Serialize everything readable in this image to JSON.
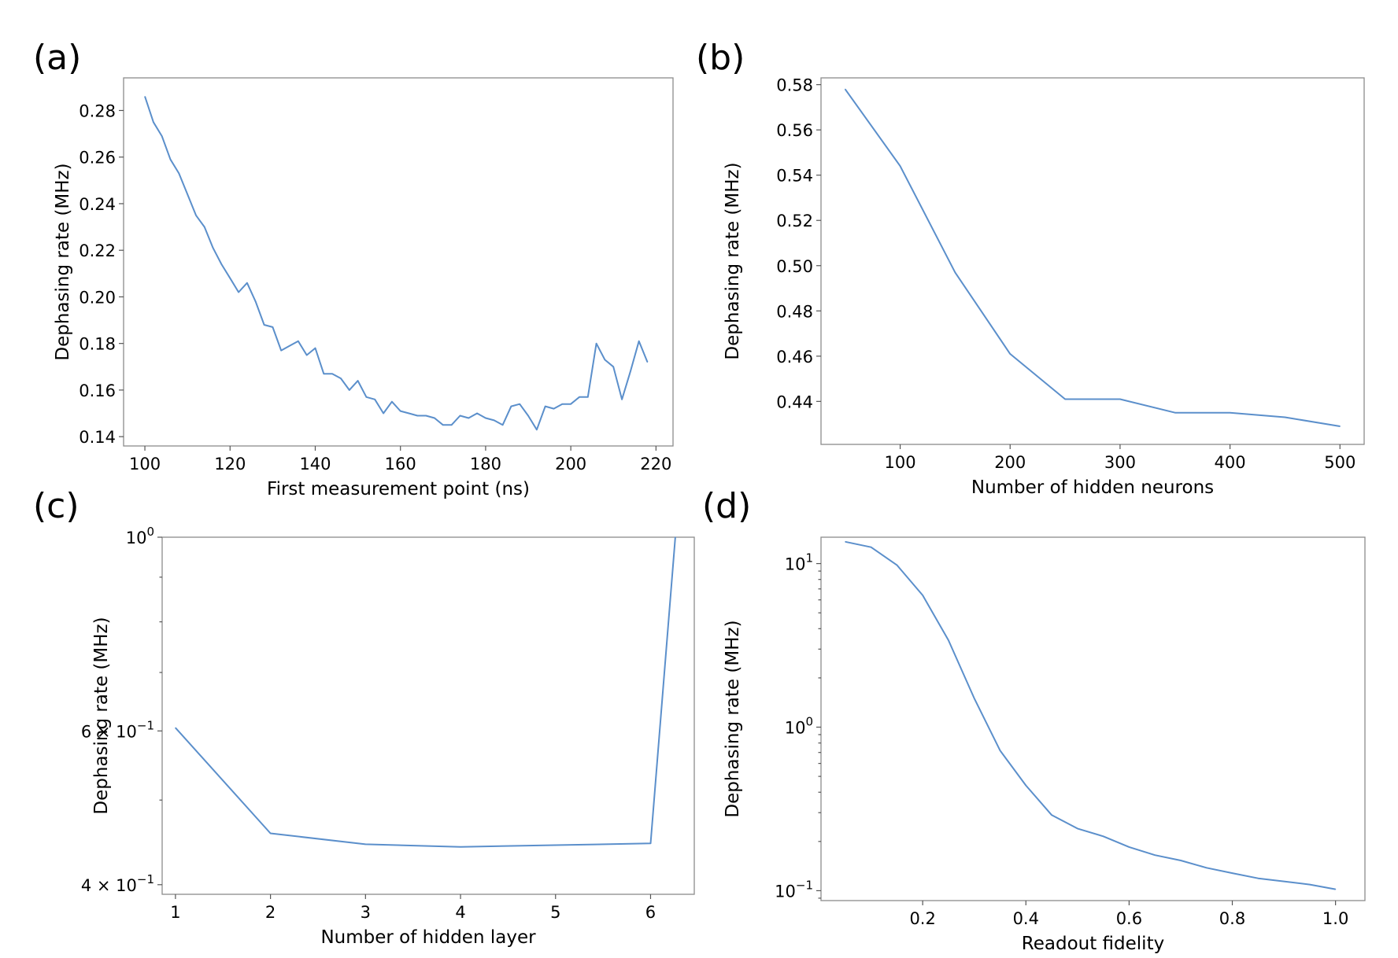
{
  "chart_data": [
    {
      "id": "a",
      "type": "line",
      "panel_label": "(a)",
      "xlabel": "First measurement point (ns)",
      "ylabel": "Dephasing rate (MHz)",
      "yscale": "linear",
      "xlim": [
        95,
        224
      ],
      "ylim": [
        0.136,
        0.294
      ],
      "xticks": [
        100,
        120,
        140,
        160,
        180,
        200,
        220
      ],
      "xtick_labels": [
        "100",
        "120",
        "140",
        "160",
        "180",
        "200",
        "220"
      ],
      "yticks": [
        0.14,
        0.16,
        0.18,
        0.2,
        0.22,
        0.24,
        0.26,
        0.28
      ],
      "ytick_labels": [
        "0.14",
        "0.16",
        "0.18",
        "0.20",
        "0.22",
        "0.24",
        "0.26",
        "0.28"
      ],
      "series": [
        {
          "name": "dephasing",
          "color": "#5b8fcb",
          "x": [
            100,
            102,
            104,
            106,
            108,
            110,
            112,
            114,
            116,
            118,
            120,
            122,
            124,
            126,
            128,
            130,
            132,
            134,
            136,
            138,
            140,
            142,
            144,
            146,
            148,
            150,
            152,
            154,
            156,
            158,
            160,
            162,
            164,
            166,
            168,
            170,
            172,
            174,
            176,
            178,
            180,
            182,
            184,
            186,
            188,
            190,
            192,
            194,
            196,
            198,
            200,
            202,
            204,
            206,
            208,
            210,
            212,
            214,
            216,
            218
          ],
          "y": [
            0.286,
            0.275,
            0.269,
            0.259,
            0.253,
            0.244,
            0.235,
            0.23,
            0.221,
            0.214,
            0.208,
            0.202,
            0.206,
            0.198,
            0.188,
            0.187,
            0.177,
            0.179,
            0.181,
            0.175,
            0.178,
            0.167,
            0.167,
            0.165,
            0.16,
            0.164,
            0.157,
            0.156,
            0.15,
            0.155,
            0.151,
            0.15,
            0.149,
            0.149,
            0.148,
            0.145,
            0.145,
            0.149,
            0.148,
            0.15,
            0.148,
            0.147,
            0.145,
            0.153,
            0.154,
            0.149,
            0.143,
            0.153,
            0.152,
            0.154,
            0.154,
            0.157,
            0.157,
            0.18,
            0.173,
            0.17,
            0.156,
            0.168,
            0.181,
            0.172
          ]
        }
      ]
    },
    {
      "id": "b",
      "type": "line",
      "panel_label": "(b)",
      "xlabel": "Number of hidden neurons",
      "ylabel": "Dephasing rate (MHz)",
      "yscale": "linear",
      "xlim": [
        28,
        522
      ],
      "ylim": [
        0.421,
        0.583
      ],
      "xticks": [
        100,
        200,
        300,
        400,
        500
      ],
      "xtick_labels": [
        "100",
        "200",
        "300",
        "400",
        "500"
      ],
      "yticks": [
        0.44,
        0.46,
        0.48,
        0.5,
        0.52,
        0.54,
        0.56,
        0.58
      ],
      "ytick_labels": [
        "0.44",
        "0.46",
        "0.48",
        "0.50",
        "0.52",
        "0.54",
        "0.56",
        "0.58"
      ],
      "series": [
        {
          "name": "dephasing",
          "color": "#5b8fcb",
          "x": [
            50,
            100,
            150,
            200,
            250,
            300,
            350,
            400,
            450,
            500
          ],
          "y": [
            0.578,
            0.544,
            0.497,
            0.461,
            0.441,
            0.441,
            0.435,
            0.435,
            0.433,
            0.429
          ]
        }
      ]
    },
    {
      "id": "c",
      "type": "line",
      "panel_label": "(c)",
      "xlabel": "Number of hidden layer",
      "ylabel": "Dephasing rate (MHz)",
      "yscale": "log",
      "xlim": [
        0.86,
        6.46
      ],
      "ylim": [
        0.39,
        1.0
      ],
      "xticks": [
        1,
        2,
        3,
        4,
        5,
        6
      ],
      "xtick_labels": [
        "1",
        "2",
        "3",
        "4",
        "5",
        "6"
      ],
      "yticks": [
        0.4,
        0.6,
        1.0
      ],
      "ytick_labels": [
        {
          "mant": "4 × 10",
          "exp": "−1"
        },
        {
          "mant": "6 × 10",
          "exp": "−1"
        },
        {
          "mant": "10",
          "exp": "0"
        }
      ],
      "series": [
        {
          "name": "dephasing",
          "color": "#5b8fcb",
          "x": [
            1,
            2,
            3,
            4,
            5,
            6,
            6.26
          ],
          "y": [
            0.605,
            0.458,
            0.445,
            0.442,
            0.444,
            0.446,
            1.0
          ]
        }
      ]
    },
    {
      "id": "d",
      "type": "line",
      "panel_label": "(d)",
      "xlabel": "Readout fidelity",
      "ylabel": "Dephasing rate (MHz)",
      "yscale": "log",
      "xlim": [
        0.003,
        1.057
      ],
      "ylim": [
        0.087,
        14.5
      ],
      "xticks": [
        0.2,
        0.4,
        0.6,
        0.8,
        1.0
      ],
      "xtick_labels": [
        "0.2",
        "0.4",
        "0.6",
        "0.8",
        "1.0"
      ],
      "yticks": [
        0.1,
        1,
        10
      ],
      "ytick_labels": [
        {
          "mant": "10",
          "exp": "−1"
        },
        {
          "mant": "10",
          "exp": "0"
        },
        {
          "mant": "10",
          "exp": "1"
        }
      ],
      "series": [
        {
          "name": "dephasing",
          "color": "#5b8fcb",
          "x": [
            0.05,
            0.1,
            0.15,
            0.2,
            0.25,
            0.3,
            0.35,
            0.4,
            0.45,
            0.5,
            0.55,
            0.6,
            0.65,
            0.7,
            0.75,
            0.8,
            0.85,
            0.9,
            0.95,
            1.0
          ],
          "y": [
            13.6,
            12.6,
            9.8,
            6.4,
            3.4,
            1.5,
            0.72,
            0.44,
            0.29,
            0.24,
            0.215,
            0.185,
            0.165,
            0.153,
            0.138,
            0.128,
            0.119,
            0.114,
            0.109,
            0.102
          ]
        }
      ]
    }
  ]
}
